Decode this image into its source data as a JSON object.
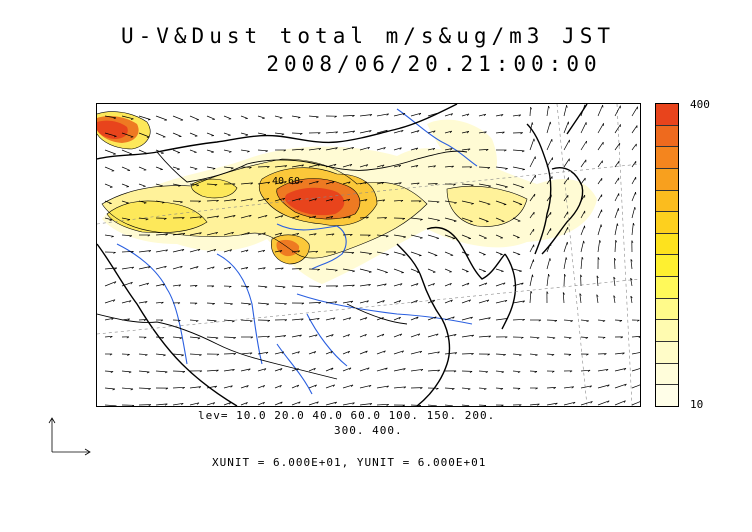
{
  "title": {
    "line1": "U-V&Dust total m/s&ug/m3 JST",
    "line2": "2008/06/20.21:00:00"
  },
  "legend": {
    "max_label": "400",
    "min_label": "10",
    "colors": [
      "#e8441c",
      "#ee6a1e",
      "#f4851e",
      "#f8a01e",
      "#fbbc1e",
      "#fdd01e",
      "#fde21e",
      "#fef030",
      "#fff95a",
      "#fffa8a",
      "#fffbb0",
      "#fffcc8",
      "#fffdda",
      "#fffee8"
    ]
  },
  "contour_levels": {
    "line1": "lev= 10.0 20.0 40.0 60.0 100. 150. 200.",
    "line2": "300. 400."
  },
  "map_labels": {
    "contour_a": "40",
    "contour_b": "60"
  },
  "units": "XUNIT = 6.000E+01, YUNIT = 6.000E+01"
}
